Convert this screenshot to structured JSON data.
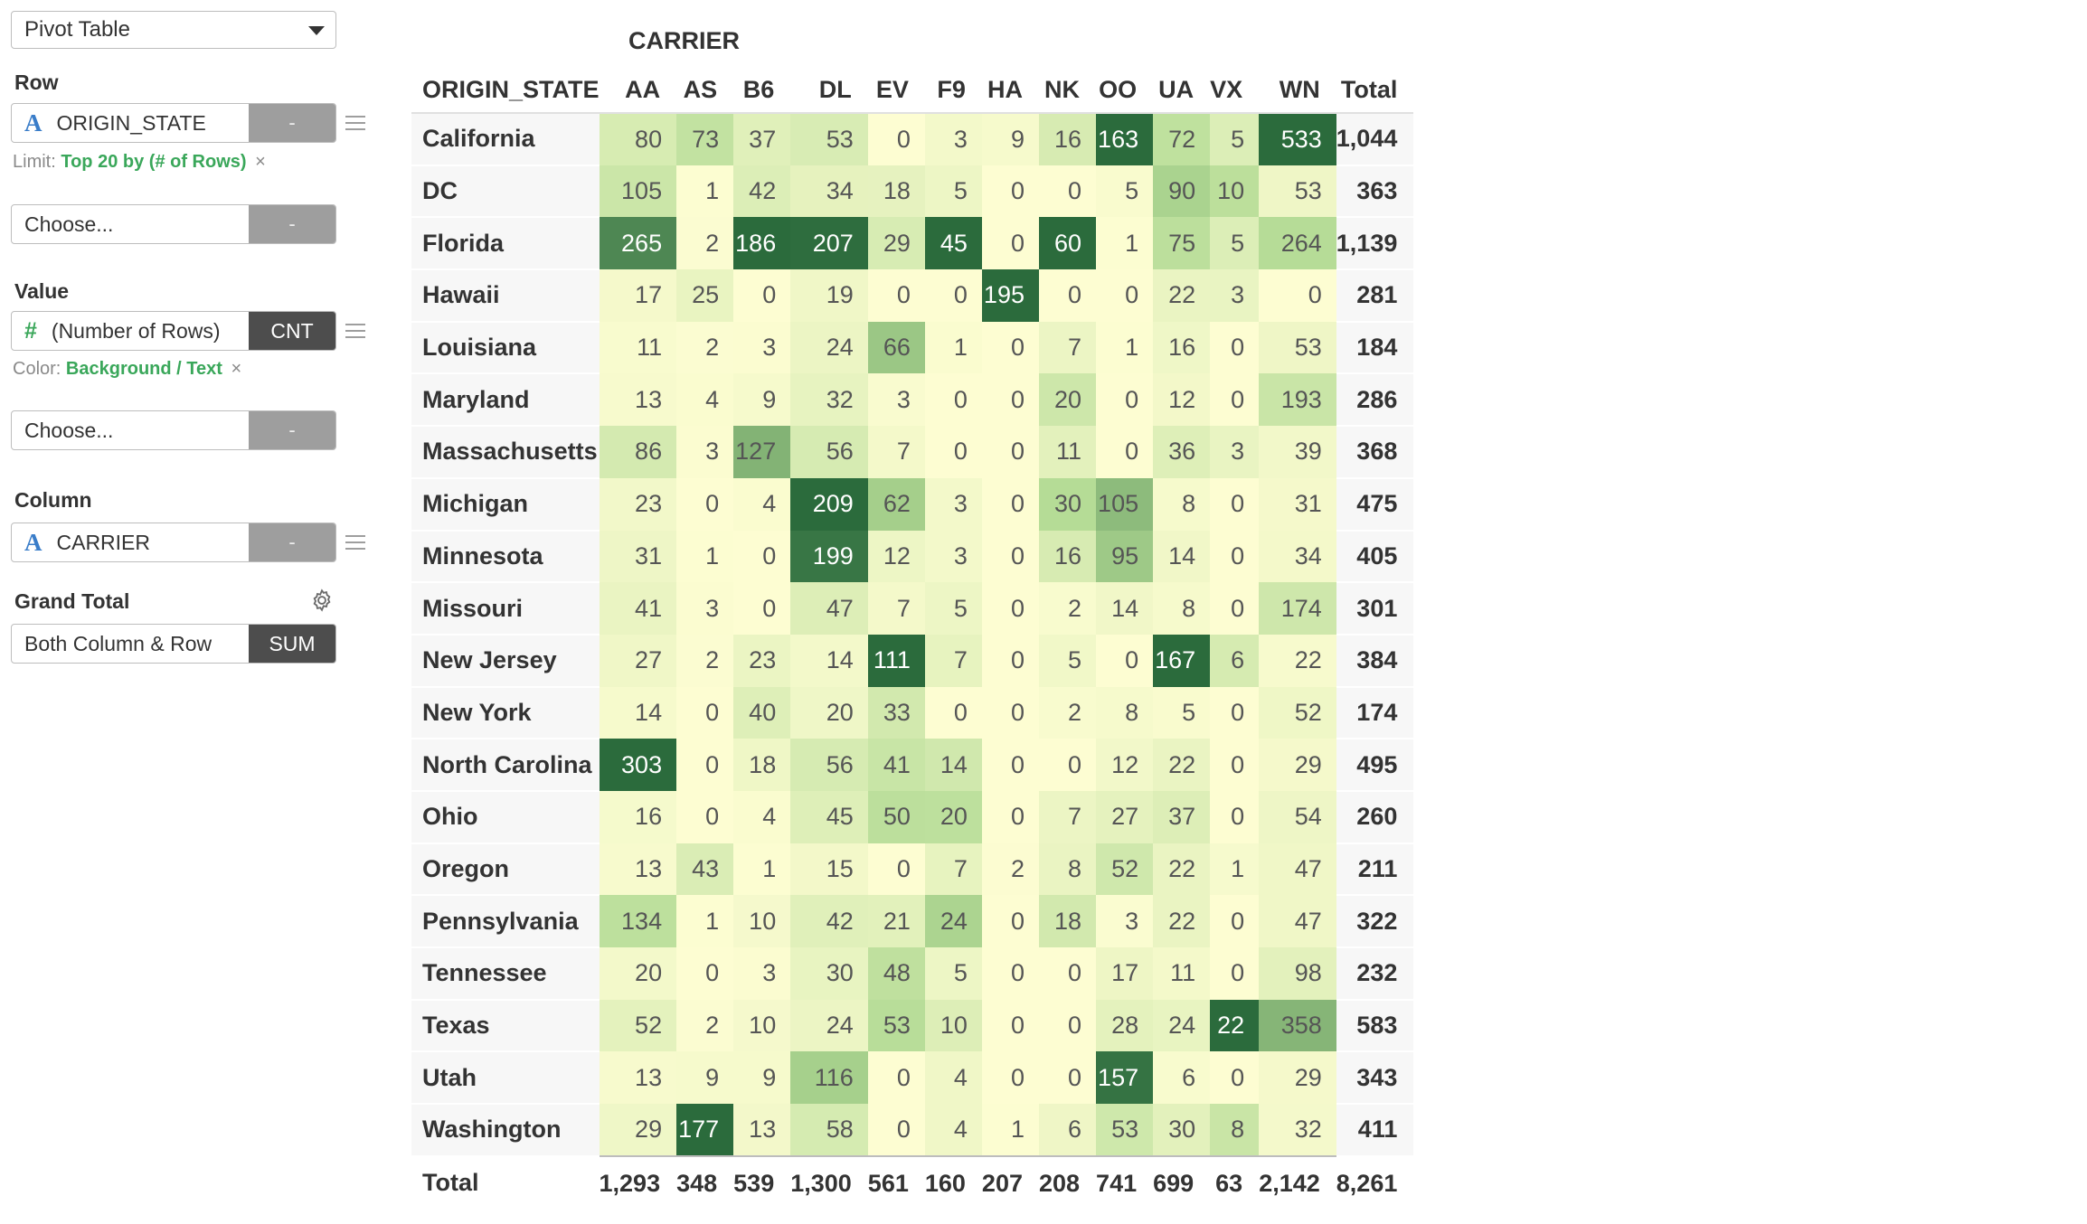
{
  "chart_type_select": {
    "value": "Pivot Table"
  },
  "row_section": {
    "title": "Row",
    "field": {
      "type_icon": "A",
      "name": "ORIGIN_STATE",
      "button": "-"
    },
    "limit_prefix": "Limit:",
    "limit_value": "Top 20 by (# of Rows)",
    "remove_icon": "×",
    "choose": {
      "placeholder": "Choose...",
      "button": "-"
    }
  },
  "value_section": {
    "title": "Value",
    "field": {
      "type_icon": "#",
      "name": "(Number of Rows)",
      "button": "CNT"
    },
    "color_prefix": "Color:",
    "color_value": "Background / Text",
    "remove_icon": "×",
    "choose": {
      "placeholder": "Choose...",
      "button": "-"
    }
  },
  "column_section": {
    "title": "Column",
    "field": {
      "type_icon": "A",
      "name": "CARRIER",
      "button": "-"
    }
  },
  "grand_total_section": {
    "title": "Grand Total",
    "settings_icon": "gear-icon",
    "value": "Both Column & Row",
    "button": "SUM"
  },
  "pivot": {
    "column_field": "CARRIER",
    "row_field": "ORIGIN_STATE",
    "columns": [
      "AA",
      "AS",
      "B6",
      "DL",
      "EV",
      "F9",
      "HA",
      "NK",
      "OO",
      "UA",
      "VX",
      "WN"
    ],
    "total_label": "Total",
    "color_scale": {
      "low": "#fdfdd2",
      "mid": "#b5dc96",
      "high": "#2b6b3c"
    },
    "rows": [
      {
        "label": "California",
        "values": [
          80,
          73,
          37,
          53,
          0,
          3,
          9,
          16,
          163,
          72,
          5,
          533
        ],
        "total": "1,044"
      },
      {
        "label": "DC",
        "values": [
          105,
          1,
          42,
          34,
          18,
          5,
          0,
          0,
          5,
          90,
          10,
          53
        ],
        "total": "363"
      },
      {
        "label": "Florida",
        "values": [
          265,
          2,
          186,
          207,
          29,
          45,
          0,
          60,
          1,
          75,
          5,
          264
        ],
        "total": "1,139"
      },
      {
        "label": "Hawaii",
        "values": [
          17,
          25,
          0,
          19,
          0,
          0,
          195,
          0,
          0,
          22,
          3,
          0
        ],
        "total": "281"
      },
      {
        "label": "Louisiana",
        "values": [
          11,
          2,
          3,
          24,
          66,
          1,
          0,
          7,
          1,
          16,
          0,
          53
        ],
        "total": "184"
      },
      {
        "label": "Maryland",
        "values": [
          13,
          4,
          9,
          32,
          3,
          0,
          0,
          20,
          0,
          12,
          0,
          193
        ],
        "total": "286"
      },
      {
        "label": "Massachusetts",
        "values": [
          86,
          3,
          127,
          56,
          7,
          0,
          0,
          11,
          0,
          36,
          3,
          39
        ],
        "total": "368"
      },
      {
        "label": "Michigan",
        "values": [
          23,
          0,
          4,
          209,
          62,
          3,
          0,
          30,
          105,
          8,
          0,
          31
        ],
        "total": "475"
      },
      {
        "label": "Minnesota",
        "values": [
          31,
          1,
          0,
          199,
          12,
          3,
          0,
          16,
          95,
          14,
          0,
          34
        ],
        "total": "405"
      },
      {
        "label": "Missouri",
        "values": [
          41,
          3,
          0,
          47,
          7,
          5,
          0,
          2,
          14,
          8,
          0,
          174
        ],
        "total": "301"
      },
      {
        "label": "New Jersey",
        "values": [
          27,
          2,
          23,
          14,
          111,
          7,
          0,
          5,
          0,
          167,
          6,
          22
        ],
        "total": "384"
      },
      {
        "label": "New York",
        "values": [
          14,
          0,
          40,
          20,
          33,
          0,
          0,
          2,
          8,
          5,
          0,
          52
        ],
        "total": "174"
      },
      {
        "label": "North Carolina",
        "values": [
          303,
          0,
          18,
          56,
          41,
          14,
          0,
          0,
          12,
          22,
          0,
          29
        ],
        "total": "495"
      },
      {
        "label": "Ohio",
        "values": [
          16,
          0,
          4,
          45,
          50,
          20,
          0,
          7,
          27,
          37,
          0,
          54
        ],
        "total": "260"
      },
      {
        "label": "Oregon",
        "values": [
          13,
          43,
          1,
          15,
          0,
          7,
          2,
          8,
          52,
          22,
          1,
          47
        ],
        "total": "211"
      },
      {
        "label": "Pennsylvania",
        "values": [
          134,
          1,
          10,
          42,
          21,
          24,
          0,
          18,
          3,
          22,
          0,
          47
        ],
        "total": "322"
      },
      {
        "label": "Tennessee",
        "values": [
          20,
          0,
          3,
          30,
          48,
          5,
          0,
          0,
          17,
          11,
          0,
          98
        ],
        "total": "232"
      },
      {
        "label": "Texas",
        "values": [
          52,
          2,
          10,
          24,
          53,
          10,
          0,
          0,
          28,
          24,
          22,
          358
        ],
        "total": "583"
      },
      {
        "label": "Utah",
        "values": [
          13,
          9,
          9,
          116,
          0,
          4,
          0,
          0,
          157,
          6,
          0,
          29
        ],
        "total": "343"
      },
      {
        "label": "Washington",
        "values": [
          29,
          177,
          13,
          58,
          0,
          4,
          1,
          6,
          53,
          30,
          8,
          32
        ],
        "total": "411"
      }
    ],
    "column_totals": [
      "1,293",
      "348",
      "539",
      "1,300",
      "561",
      "160",
      "207",
      "208",
      "741",
      "699",
      "63",
      "2,142"
    ],
    "grand_total": "8,261"
  }
}
